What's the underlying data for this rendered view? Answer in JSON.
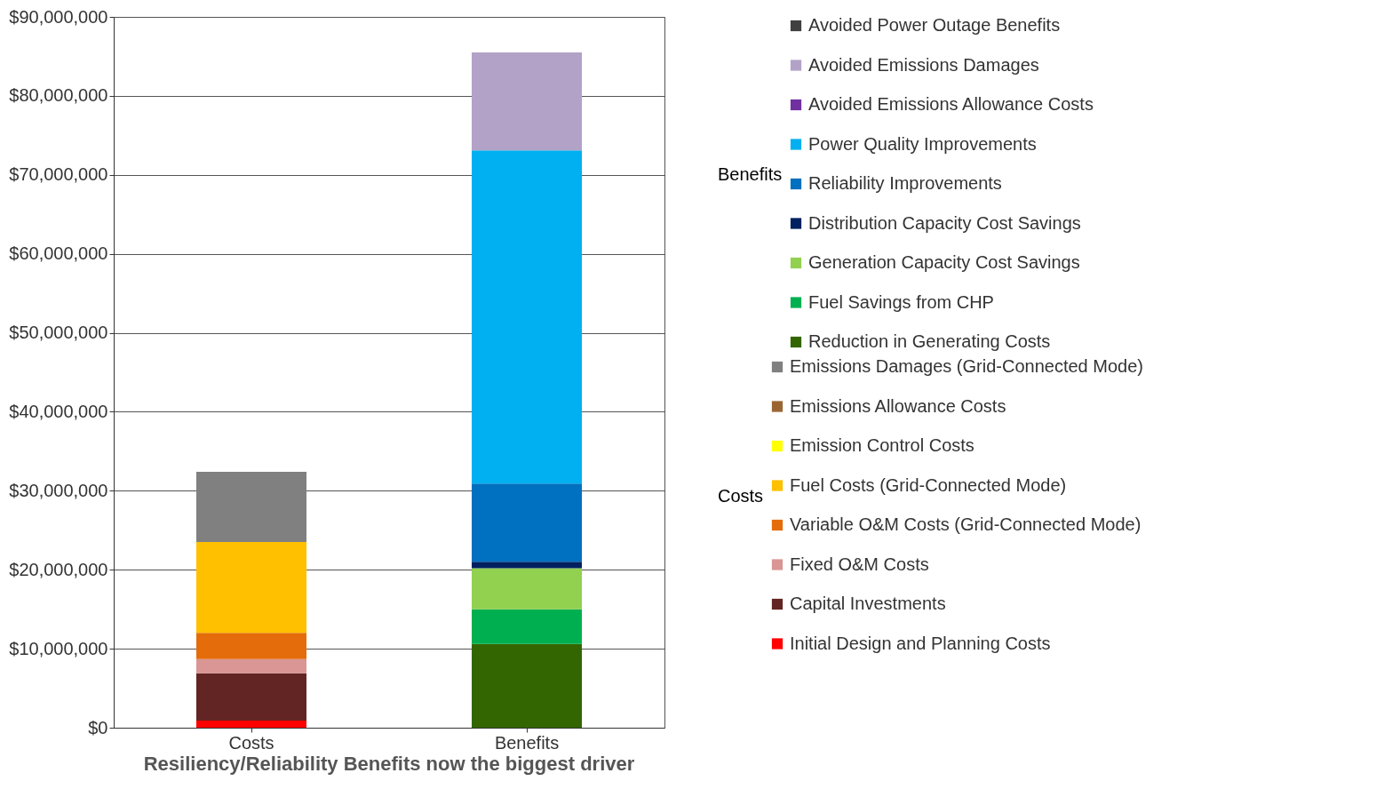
{
  "chart_data": {
    "type": "bar",
    "stacked": true,
    "categories": [
      "Costs",
      "Benefits"
    ],
    "ylim": [
      0,
      90000000
    ],
    "yticks": [
      {
        "value": 0,
        "label": "$0"
      },
      {
        "value": 10000000,
        "label": "$10,000,000"
      },
      {
        "value": 20000000,
        "label": "$20,000,000"
      },
      {
        "value": 30000000,
        "label": "$30,000,000"
      },
      {
        "value": 40000000,
        "label": "$40,000,000"
      },
      {
        "value": 50000000,
        "label": "$50,000,000"
      },
      {
        "value": 60000000,
        "label": "$60,000,000"
      },
      {
        "value": 70000000,
        "label": "$70,000,000"
      },
      {
        "value": 80000000,
        "label": "$80,000,000"
      },
      {
        "value": 90000000,
        "label": "$90,000,000"
      }
    ],
    "grid": "y",
    "legend": "right",
    "annotations": [
      "Resiliency/Reliability Benefits now the biggest driver",
      "Benefits",
      "Costs"
    ],
    "series": [
      {
        "name": "Initial Design and Planning Costs",
        "color": "#ff0000",
        "values": [
          900000,
          null
        ]
      },
      {
        "name": "Capital Investments",
        "color": "#632523",
        "values": [
          6000000,
          null
        ]
      },
      {
        "name": "Fixed O&M Costs",
        "color": "#d99694",
        "values": [
          1800000,
          null
        ]
      },
      {
        "name": "Variable O&M Costs (Grid-Connected Mode)",
        "color": "#e46c0a",
        "values": [
          3300000,
          null
        ]
      },
      {
        "name": "Fuel Costs (Grid-Connected Mode)",
        "color": "#ffc000",
        "values": [
          11500000,
          null
        ]
      },
      {
        "name": "Emission Control Costs",
        "color": "#ffff00",
        "values": [
          0,
          null
        ]
      },
      {
        "name": "Emissions Allowance Costs",
        "color": "#996633",
        "values": [
          0,
          null
        ]
      },
      {
        "name": "Emissions Damages (Grid-Connected Mode)",
        "color": "#808080",
        "values": [
          8900000,
          null
        ]
      },
      {
        "name": "Reduction in Generating Costs",
        "color": "#336600",
        "values": [
          null,
          10600000
        ]
      },
      {
        "name": "Fuel Savings from CHP",
        "color": "#00b050",
        "values": [
          null,
          4400000
        ]
      },
      {
        "name": "Generation Capacity Cost Savings",
        "color": "#92d050",
        "values": [
          null,
          5200000
        ]
      },
      {
        "name": "Distribution Capacity Cost Savings",
        "color": "#002060",
        "values": [
          null,
          800000
        ]
      },
      {
        "name": "Reliability Improvements",
        "color": "#0070c0",
        "values": [
          null,
          9900000
        ]
      },
      {
        "name": "Power Quality Improvements",
        "color": "#00b0f0",
        "values": [
          null,
          42200000
        ]
      },
      {
        "name": "Avoided Emissions Allowance Costs",
        "color": "#7030a0",
        "values": [
          null,
          0
        ]
      },
      {
        "name": "Avoided Emissions Damages",
        "color": "#b3a2c7",
        "values": [
          null,
          12400000
        ]
      },
      {
        "name": "Avoided Power Outage Benefits",
        "color": "#404040",
        "values": [
          null,
          0
        ]
      }
    ]
  }
}
